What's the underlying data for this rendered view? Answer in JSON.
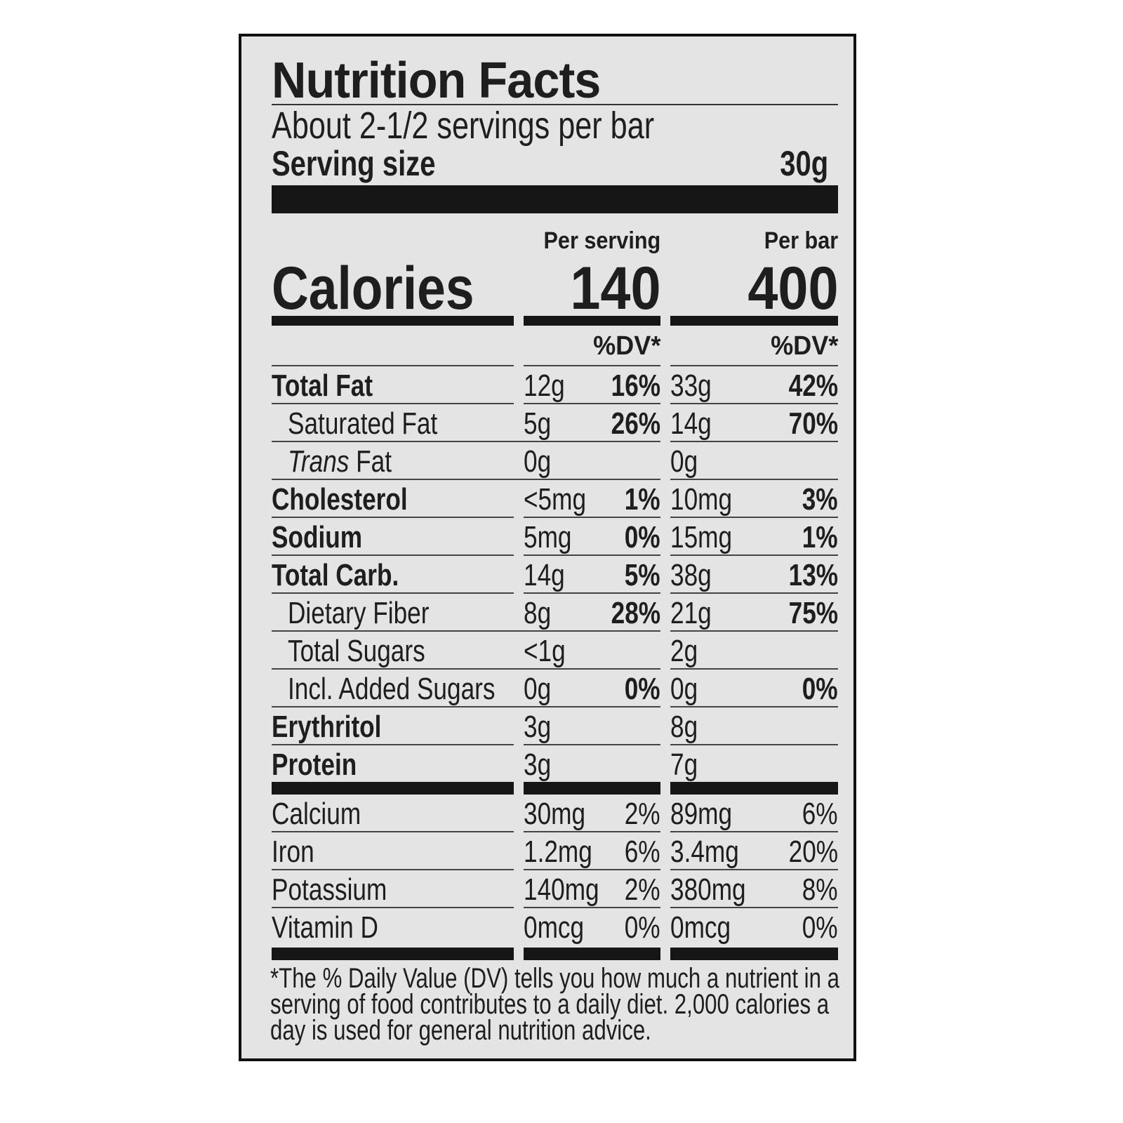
{
  "title": "Nutrition Facts",
  "servings_per_container": "About 2-1/2 servings per bar",
  "serving_size_label": "Serving size",
  "serving_size_value": "30g",
  "columns": {
    "per_serving": "Per serving",
    "per_bar": "Per bar",
    "dv": "%DV*"
  },
  "calories": {
    "label": "Calories",
    "per_serving": "140",
    "per_bar": "400"
  },
  "nutrients": [
    {
      "name": "Total Fat",
      "bold": true,
      "indent": false,
      "serving_amount": "12g",
      "serving_dv": "16%",
      "bar_amount": "33g",
      "bar_dv": "42%"
    },
    {
      "name": "Saturated Fat",
      "bold": false,
      "indent": true,
      "serving_amount": "5g",
      "serving_dv": "26%",
      "bar_amount": "14g",
      "bar_dv": "70%"
    },
    {
      "name": "Trans Fat",
      "bold": false,
      "indent": true,
      "italic_prefix": "Trans",
      "serving_amount": "0g",
      "serving_dv": "",
      "bar_amount": "0g",
      "bar_dv": ""
    },
    {
      "name": "Cholesterol",
      "bold": true,
      "indent": false,
      "serving_amount": "<5mg",
      "serving_dv": "1%",
      "bar_amount": "10mg",
      "bar_dv": "3%"
    },
    {
      "name": "Sodium",
      "bold": true,
      "indent": false,
      "serving_amount": "5mg",
      "serving_dv": "0%",
      "bar_amount": "15mg",
      "bar_dv": "1%"
    },
    {
      "name": "Total Carb.",
      "bold": true,
      "indent": false,
      "serving_amount": "14g",
      "serving_dv": "5%",
      "bar_amount": "38g",
      "bar_dv": "13%"
    },
    {
      "name": "Dietary Fiber",
      "bold": false,
      "indent": true,
      "serving_amount": "8g",
      "serving_dv": "28%",
      "bar_amount": "21g",
      "bar_dv": "75%"
    },
    {
      "name": "Total Sugars",
      "bold": false,
      "indent": true,
      "serving_amount": "<1g",
      "serving_dv": "",
      "bar_amount": "2g",
      "bar_dv": ""
    },
    {
      "name": "Incl. Added Sugars",
      "bold": false,
      "indent": true,
      "serving_amount": "0g",
      "serving_dv": "0%",
      "bar_amount": "0g",
      "bar_dv": "0%"
    },
    {
      "name": "Erythritol",
      "bold": true,
      "indent": false,
      "serving_amount": "3g",
      "serving_dv": "",
      "bar_amount": "8g",
      "bar_dv": ""
    },
    {
      "name": "Protein",
      "bold": true,
      "indent": false,
      "serving_amount": "3g",
      "serving_dv": "",
      "bar_amount": "7g",
      "bar_dv": ""
    }
  ],
  "vitamins": [
    {
      "name": "Calcium",
      "serving_amount": "30mg",
      "serving_dv": "2%",
      "bar_amount": "89mg",
      "bar_dv": "6%"
    },
    {
      "name": "Iron",
      "serving_amount": "1.2mg",
      "serving_dv": "6%",
      "bar_amount": "3.4mg",
      "bar_dv": "20%"
    },
    {
      "name": "Potassium",
      "serving_amount": "140mg",
      "serving_dv": "2%",
      "bar_amount": "380mg",
      "bar_dv": "8%"
    },
    {
      "name": "Vitamin D",
      "serving_amount": "0mcg",
      "serving_dv": "0%",
      "bar_amount": "0mcg",
      "bar_dv": "0%"
    }
  ],
  "footnote": "*The % Daily Value (DV) tells you how much a nutrient in a serving of food contributes to a daily diet. 2,000 calories a day is used for general nutrition advice."
}
